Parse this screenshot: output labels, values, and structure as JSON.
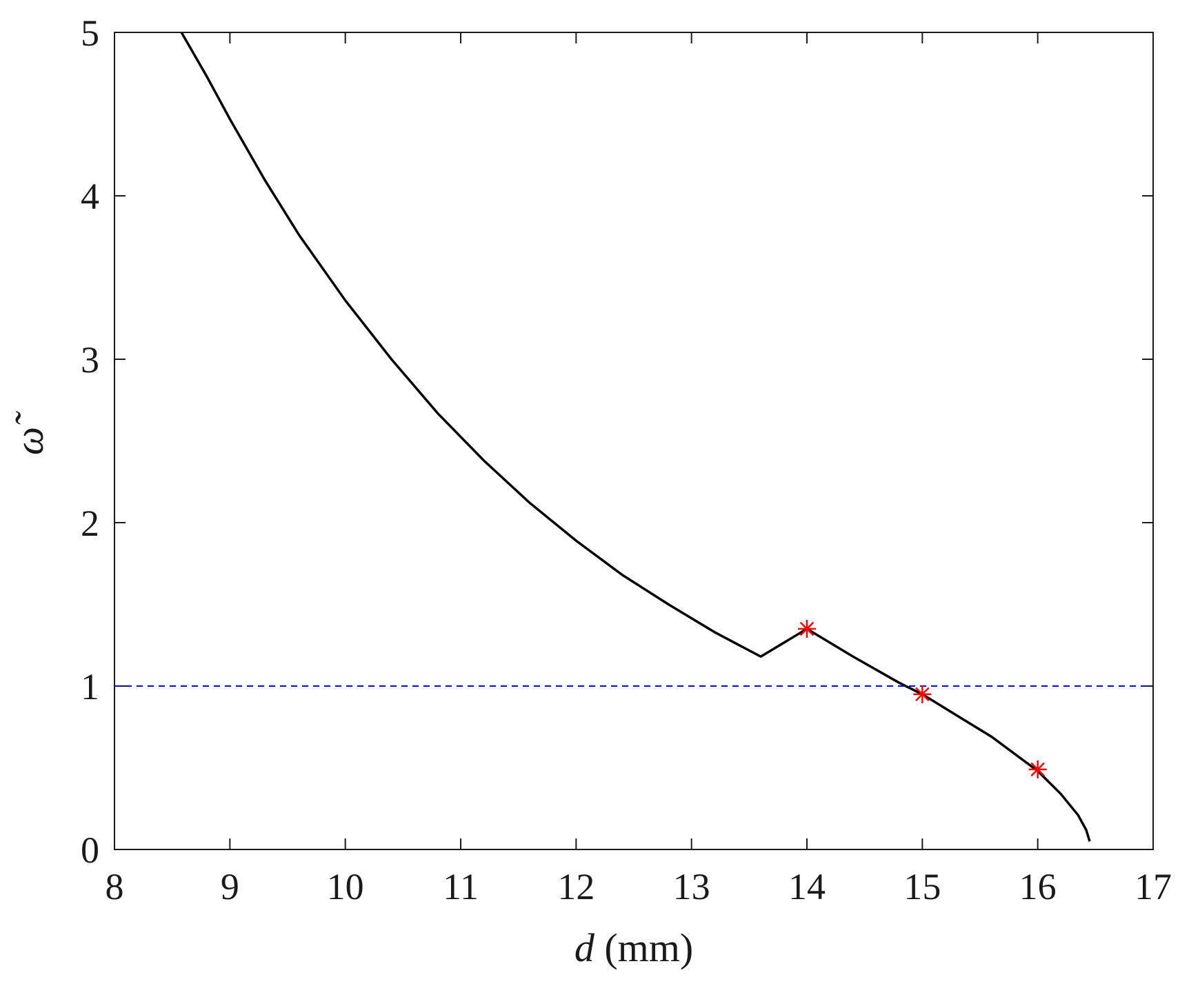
{
  "chart_data": {
    "type": "line",
    "xlabel": {
      "var": "d",
      "unit": " (mm)"
    },
    "ylabel": "ω̃",
    "xlim": [
      8,
      17
    ],
    "ylim": [
      0,
      5
    ],
    "xticks": [
      "8",
      "9",
      "10",
      "11",
      "12",
      "13",
      "14",
      "15",
      "16",
      "17"
    ],
    "yticks": [
      "0",
      "1",
      "2",
      "3",
      "4",
      "5"
    ],
    "grid": false,
    "colors": {
      "curve": "#000000",
      "reference": "#0000ff",
      "markers": "#ff0000",
      "axes": "#1a1a1a"
    },
    "series": [
      {
        "style": "solid",
        "color": "#000000",
        "x": [
          8.58,
          8.8,
          9.0,
          9.3,
          9.6,
          10.0,
          10.4,
          10.8,
          11.2,
          11.6,
          12.0,
          12.4,
          12.8,
          13.2,
          13.6,
          14.0,
          14.4,
          14.8,
          15.0,
          15.3,
          15.6,
          16.0,
          16.2,
          16.35,
          16.42,
          16.45
        ],
        "y": [
          5.0,
          4.73,
          4.47,
          4.1,
          3.76,
          3.36,
          3.0,
          2.67,
          2.38,
          2.12,
          1.89,
          1.68,
          1.5,
          1.33,
          1.18,
          1.35,
          1.18,
          1.02,
          0.95,
          0.82,
          0.69,
          0.48,
          0.34,
          0.21,
          0.12,
          0.05
        ]
      },
      {
        "style": "dashed",
        "color": "#0000ff",
        "x": [
          8,
          17
        ],
        "y": [
          1,
          1
        ]
      }
    ],
    "markers": {
      "symbol": "asterisk",
      "color": "#ff0000",
      "x": [
        14,
        15,
        16
      ],
      "y": [
        1.35,
        0.95,
        0.49
      ]
    }
  }
}
